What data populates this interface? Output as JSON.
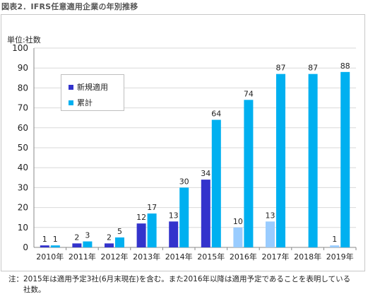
{
  "figure_title": "図表2．IFRS任意適用企業の年別推移",
  "unit_label": "単位:社数",
  "note": {
    "mark": "注：",
    "text": "2015年は適用予定3社(6月末現在)を含む。また2016年以降は適用予定であることを表明している社数。"
  },
  "colors": {
    "new": "#3333cc",
    "new_planned": "#99ccff",
    "cumulative": "#00b0f0",
    "grid": "#d9d9d9",
    "axis": "#888888"
  },
  "chart_data": {
    "type": "bar",
    "title": "",
    "xlabel": "",
    "ylabel": "単位:社数",
    "ylim": [
      0,
      100
    ],
    "yticks": [
      0,
      10,
      20,
      30,
      40,
      50,
      60,
      70,
      80,
      90,
      100
    ],
    "grid": true,
    "legend_position": "top-left",
    "categories": [
      "2010年",
      "2011年",
      "2012年",
      "2013年",
      "2014年",
      "2015年",
      "2016年",
      "2017年",
      "2018年",
      "2019年"
    ],
    "series": [
      {
        "name": "新規適用",
        "values": [
          1,
          2,
          2,
          12,
          13,
          34,
          10,
          13,
          null,
          1
        ],
        "planned_from_index": 6
      },
      {
        "name": "累計",
        "values": [
          1,
          3,
          5,
          17,
          30,
          64,
          74,
          87,
          87,
          88
        ]
      }
    ]
  }
}
